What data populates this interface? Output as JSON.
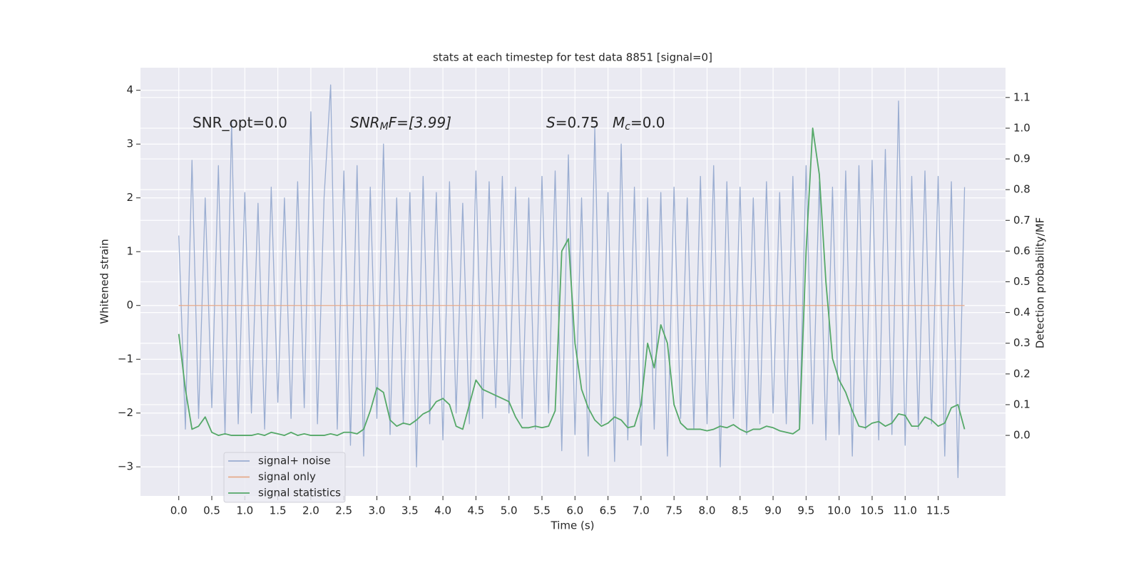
{
  "chart_data": {
    "type": "line",
    "title": "stats at each timestep for test data 8851 [signal=0]",
    "xlabel": "Time (s)",
    "ylabel": "Whitened strain",
    "y2label": "Detection probability/MF",
    "annotations": [
      [
        "SNR_opt=0.0"
      ],
      [
        "SNR",
        "M",
        "F=[3.99]"
      ],
      [
        "S",
        "=0.75"
      ],
      [
        "M",
        "c",
        "=0.0"
      ]
    ],
    "x": [
      0,
      0.1,
      0.2,
      0.3,
      0.4,
      0.5,
      0.6,
      0.7,
      0.8,
      0.9,
      1,
      1.1,
      1.2,
      1.3,
      1.4,
      1.5,
      1.6,
      1.7,
      1.8,
      1.9,
      2,
      2.1,
      2.2,
      2.3,
      2.4,
      2.5,
      2.6,
      2.7,
      2.8,
      2.9,
      3,
      3.1,
      3.2,
      3.3,
      3.4,
      3.5,
      3.6,
      3.7,
      3.8,
      3.9,
      4,
      4.1,
      4.2,
      4.3,
      4.4,
      4.5,
      4.6,
      4.7,
      4.8,
      4.9,
      5,
      5.1,
      5.2,
      5.3,
      5.4,
      5.5,
      5.6,
      5.7,
      5.8,
      5.9,
      6,
      6.1,
      6.2,
      6.3,
      6.4,
      6.5,
      6.6,
      6.7,
      6.8,
      6.9,
      7,
      7.1,
      7.2,
      7.3,
      7.4,
      7.5,
      7.6,
      7.7,
      7.8,
      7.9,
      8,
      8.1,
      8.2,
      8.3,
      8.4,
      8.5,
      8.6,
      8.7,
      8.8,
      8.9,
      9,
      9.1,
      9.2,
      9.3,
      9.4,
      9.5,
      9.6,
      9.7,
      9.8,
      9.9,
      10,
      10.1,
      10.2,
      10.3,
      10.4,
      10.5,
      10.6,
      10.7,
      10.8,
      10.9,
      11,
      11.1,
      11.2,
      11.3,
      11.4,
      11.5,
      11.6,
      11.7,
      11.8,
      11.9
    ],
    "series": [
      {
        "name": "signal+ noise",
        "color": "#9aadd1",
        "axis": "y",
        "values": [
          1.3,
          -2.3,
          2.7,
          -2.1,
          2.0,
          -1.9,
          2.6,
          -2.4,
          3.4,
          -2.2,
          2.1,
          -2.0,
          1.9,
          -2.3,
          2.2,
          -1.8,
          2.0,
          -2.1,
          2.3,
          -1.9,
          3.6,
          -2.2,
          2.0,
          4.1,
          -2.3,
          2.5,
          -2.6,
          2.6,
          -2.8,
          2.2,
          -2.1,
          3.0,
          -2.4,
          2.0,
          -2.2,
          2.1,
          -3.0,
          2.4,
          -2.2,
          2.1,
          -2.5,
          2.3,
          -2.0,
          1.9,
          -2.2,
          2.5,
          -2.1,
          2.3,
          -1.9,
          2.4,
          -2.0,
          2.2,
          -2.1,
          2.0,
          -2.3,
          2.4,
          -2.0,
          2.5,
          -2.7,
          2.8,
          -2.4,
          2.0,
          -2.8,
          3.3,
          -2.2,
          2.1,
          -2.9,
          3.0,
          -2.5,
          2.2,
          -2.6,
          2.0,
          -2.3,
          2.1,
          -2.8,
          2.2,
          -2.1,
          2.0,
          -2.3,
          2.4,
          -2.2,
          2.6,
          -3.0,
          2.3,
          -2.1,
          2.2,
          -2.4,
          2.0,
          -2.2,
          2.3,
          -2.0,
          2.1,
          -2.2,
          2.4,
          -2.3,
          2.6,
          -2.2,
          2.3,
          -2.5,
          2.2,
          -2.4,
          2.5,
          -2.8,
          2.6,
          -2.3,
          2.7,
          -2.5,
          2.9,
          -2.4,
          3.8,
          -2.6,
          2.4,
          -2.3,
          2.5,
          -2.2,
          2.4,
          -2.8,
          2.3,
          -3.2,
          2.2
        ]
      },
      {
        "name": "signal only",
        "color": "#e6a98a",
        "axis": "y",
        "values": [
          0,
          0,
          0,
          0,
          0,
          0,
          0,
          0,
          0,
          0,
          0,
          0,
          0,
          0,
          0,
          0,
          0,
          0,
          0,
          0,
          0,
          0,
          0,
          0,
          0,
          0,
          0,
          0,
          0,
          0,
          0,
          0,
          0,
          0,
          0,
          0,
          0,
          0,
          0,
          0,
          0,
          0,
          0,
          0,
          0,
          0,
          0,
          0,
          0,
          0,
          0,
          0,
          0,
          0,
          0,
          0,
          0,
          0,
          0,
          0,
          0,
          0,
          0,
          0,
          0,
          0,
          0,
          0,
          0,
          0,
          0,
          0,
          0,
          0,
          0,
          0,
          0,
          0,
          0,
          0,
          0,
          0,
          0,
          0,
          0,
          0,
          0,
          0,
          0,
          0,
          0,
          0,
          0,
          0,
          0,
          0,
          0,
          0,
          0,
          0,
          0,
          0,
          0,
          0,
          0,
          0,
          0,
          0,
          0,
          0,
          0,
          0,
          0,
          0,
          0,
          0,
          0,
          0,
          0,
          0
        ]
      },
      {
        "name": "signal statistics",
        "color": "#55a868",
        "axis": "y2",
        "values": [
          0.33,
          0.15,
          0.02,
          0.03,
          0.06,
          0.01,
          0.0,
          0.005,
          0.0,
          0.0,
          0.0,
          0.0,
          0.005,
          0.0,
          0.01,
          0.005,
          0.0,
          0.01,
          0.0,
          0.005,
          0.0,
          0.0,
          0.0,
          0.005,
          0.0,
          0.01,
          0.01,
          0.005,
          0.02,
          0.08,
          0.155,
          0.14,
          0.05,
          0.03,
          0.04,
          0.035,
          0.05,
          0.07,
          0.08,
          0.11,
          0.12,
          0.1,
          0.03,
          0.02,
          0.1,
          0.18,
          0.15,
          0.14,
          0.13,
          0.12,
          0.11,
          0.06,
          0.025,
          0.025,
          0.03,
          0.025,
          0.03,
          0.08,
          0.6,
          0.64,
          0.3,
          0.15,
          0.09,
          0.05,
          0.03,
          0.04,
          0.06,
          0.05,
          0.025,
          0.03,
          0.1,
          0.3,
          0.22,
          0.36,
          0.3,
          0.1,
          0.04,
          0.02,
          0.02,
          0.02,
          0.015,
          0.02,
          0.03,
          0.025,
          0.035,
          0.02,
          0.01,
          0.02,
          0.02,
          0.03,
          0.025,
          0.015,
          0.01,
          0.005,
          0.02,
          0.6,
          1.0,
          0.85,
          0.5,
          0.25,
          0.18,
          0.14,
          0.08,
          0.03,
          0.025,
          0.04,
          0.045,
          0.03,
          0.04,
          0.07,
          0.065,
          0.03,
          0.03,
          0.06,
          0.05,
          0.03,
          0.04,
          0.09,
          0.1,
          0.02
        ]
      }
    ],
    "xlim": [
      -0.58,
      12.52
    ],
    "ylim": [
      -3.54,
      4.42
    ],
    "y2lim": [
      -0.197,
      1.197
    ],
    "xticks": [
      {
        "value": 0,
        "label": "0.0"
      },
      0.5,
      {
        "value": 1,
        "label": "1.0"
      },
      1.5,
      {
        "value": 2,
        "label": "2.0"
      },
      2.5,
      {
        "value": 3,
        "label": "3.0"
      },
      3.5,
      {
        "value": 4,
        "label": "4.0"
      },
      4.5,
      {
        "value": 5,
        "label": "5.0"
      },
      5.5,
      {
        "value": 6,
        "label": "6.0"
      },
      6.5,
      {
        "value": 7,
        "label": "7.0"
      },
      7.5,
      {
        "value": 8,
        "label": "8.0"
      },
      8.5,
      {
        "value": 9,
        "label": "9.0"
      },
      9.5,
      {
        "value": 10,
        "label": "10.0"
      },
      10.5,
      {
        "value": 11,
        "label": "11.0"
      },
      11.5
    ],
    "yticks": [
      {
        "value": -3,
        "label": "−3"
      },
      {
        "value": -2,
        "label": "−2"
      },
      {
        "value": -1,
        "label": "−1"
      },
      0,
      1,
      2,
      3,
      4
    ],
    "y2ticks": [
      {
        "value": 0,
        "label": "0.0"
      },
      0.1,
      0.2,
      0.3,
      0.4,
      0.5,
      0.6,
      0.7,
      0.8,
      0.9,
      {
        "value": 1,
        "label": "1.0"
      },
      1.1
    ],
    "grid": true,
    "legend": "lower left"
  }
}
